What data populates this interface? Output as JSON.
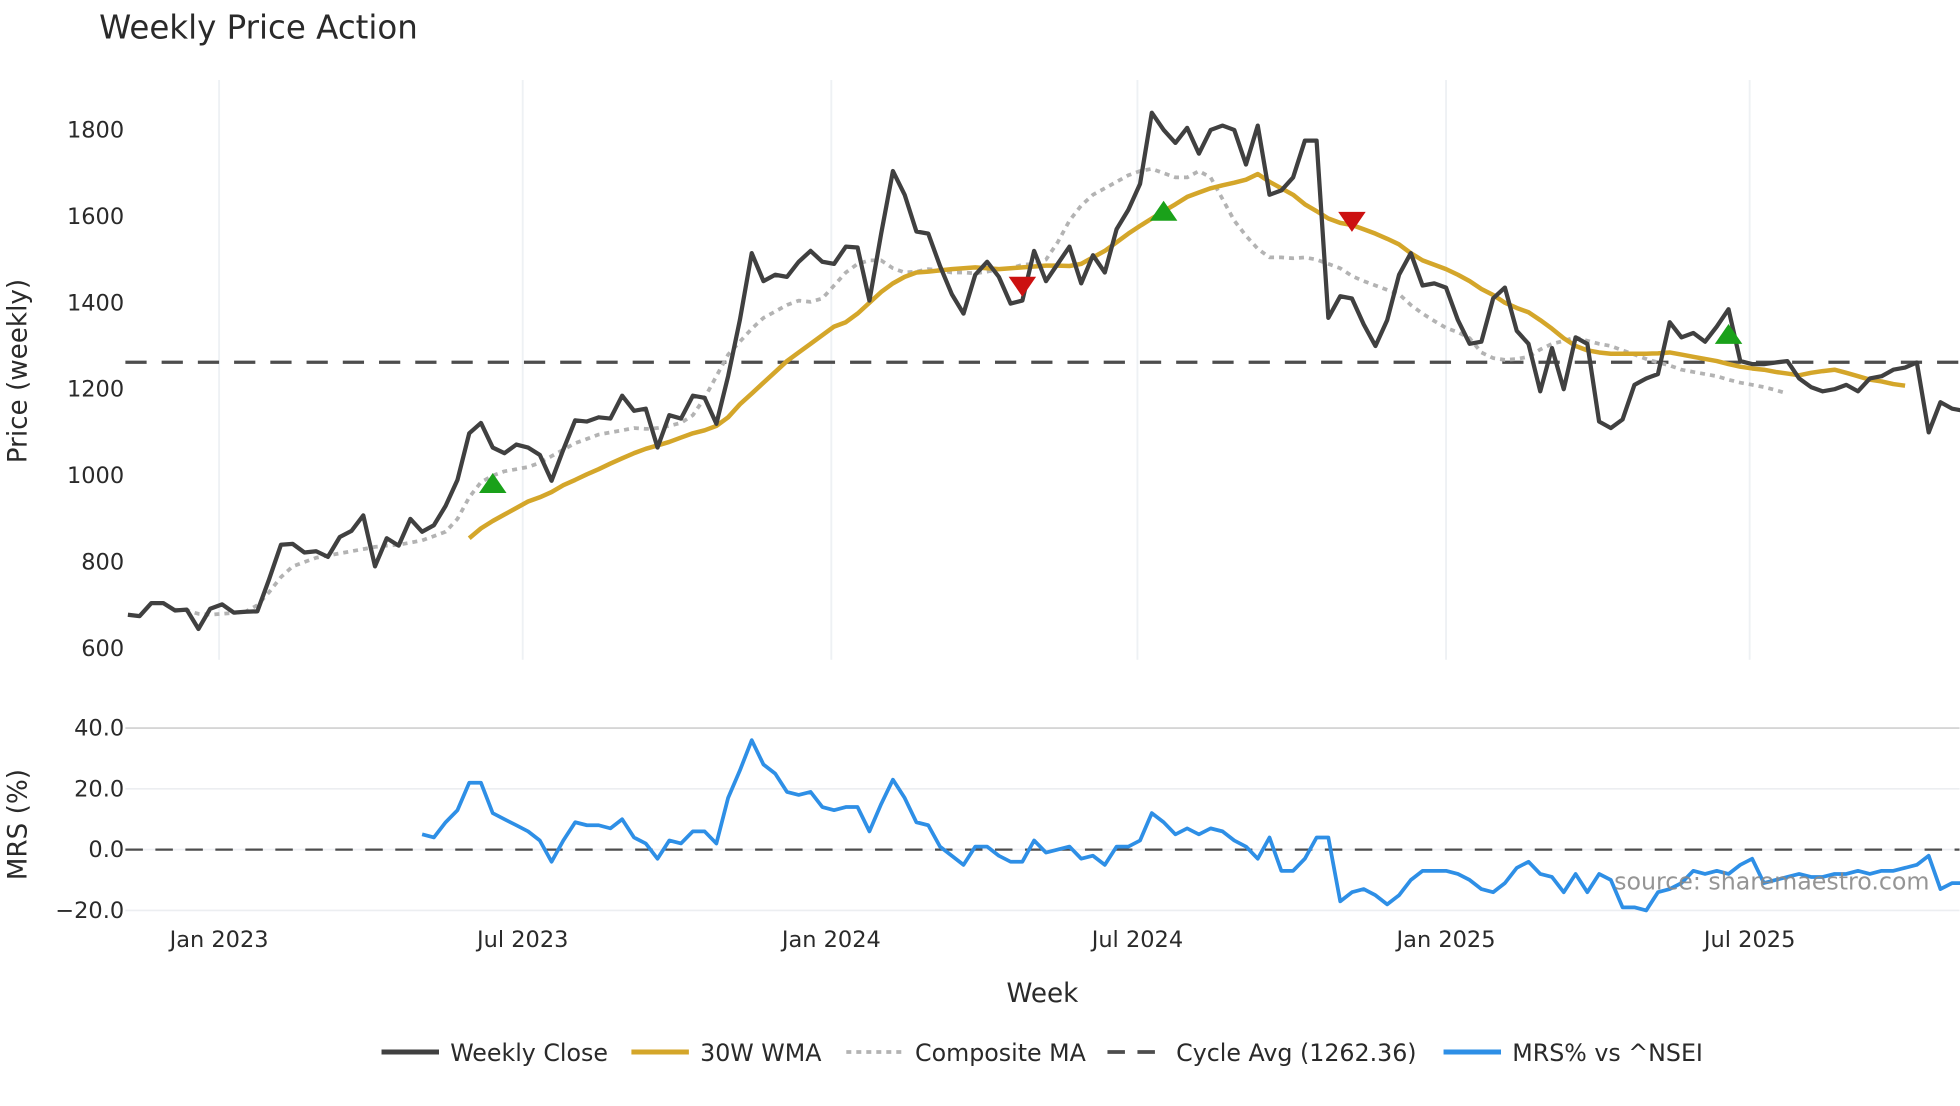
{
  "title": "Weekly Price Action",
  "watermark": "source: sharemaestro.com",
  "x_axis_title": "Week",
  "chart_data": [
    {
      "type": "line",
      "title": "Weekly Price Action",
      "xlabel": "",
      "ylabel": "Price (weekly)",
      "ylim": [
        580,
        1900
      ],
      "yticks": [
        600,
        800,
        1000,
        1200,
        1400,
        1600,
        1800
      ],
      "xticks": [
        "Jan 2023",
        "Jul 2023",
        "Jan 2024",
        "Jul 2024",
        "Jan 2025",
        "Jul 2025"
      ],
      "grid": true,
      "legend_position": "bottom",
      "x_start": "Nov 2022",
      "x_unit": "week",
      "series": [
        {
          "name": "Weekly Close",
          "color": "#404040",
          "style": "solid",
          "values": [
            678,
            675,
            705,
            705,
            688,
            690,
            645,
            692,
            702,
            683,
            685,
            686,
            760,
            840,
            842,
            822,
            825,
            812,
            858,
            872,
            908,
            790,
            855,
            838,
            900,
            870,
            885,
            930,
            990,
            1098,
            1122,
            1065,
            1052,
            1072,
            1065,
            1048,
            988,
            1060,
            1128,
            1125,
            1135,
            1132,
            1185,
            1150,
            1155,
            1065,
            1140,
            1132,
            1185,
            1180,
            1120,
            1230,
            1360,
            1515,
            1450,
            1465,
            1460,
            1495,
            1520,
            1495,
            1490,
            1530,
            1528,
            1405,
            1560,
            1705,
            1650,
            1565,
            1560,
            1485,
            1420,
            1375,
            1465,
            1495,
            1460,
            1398,
            1405,
            1520,
            1450,
            1490,
            1530,
            1445,
            1510,
            1470,
            1570,
            1615,
            1675,
            1840,
            1800,
            1770,
            1805,
            1745,
            1800,
            1810,
            1800,
            1720,
            1810,
            1650,
            1660,
            1690,
            1775,
            1775,
            1365,
            1415,
            1410,
            1350,
            1300,
            1360,
            1465,
            1515,
            1440,
            1445,
            1435,
            1360,
            1305,
            1310,
            1410,
            1435,
            1335,
            1305,
            1195,
            1295,
            1200,
            1320,
            1305,
            1125,
            1110,
            1130,
            1210,
            1225,
            1235,
            1355,
            1320,
            1330,
            1310,
            1345,
            1385,
            1265,
            1258,
            1258,
            1262,
            1265,
            1225,
            1205,
            1195,
            1200,
            1210,
            1195,
            1225,
            1230,
            1245,
            1250,
            1262,
            1100,
            1170,
            1155,
            1150,
            1180,
            1150
          ]
        },
        {
          "name": "30W WMA",
          "color": "#d4a62a",
          "style": "solid",
          "start_index": 29,
          "values": [
            855,
            878,
            895,
            910,
            925,
            940,
            950,
            962,
            978,
            990,
            1003,
            1015,
            1028,
            1040,
            1052,
            1062,
            1070,
            1078,
            1088,
            1098,
            1105,
            1115,
            1135,
            1165,
            1190,
            1215,
            1240,
            1265,
            1285,
            1305,
            1325,
            1345,
            1355,
            1375,
            1400,
            1425,
            1445,
            1460,
            1470,
            1472,
            1475,
            1478,
            1480,
            1482,
            1480,
            1478,
            1480,
            1482,
            1484,
            1486,
            1486,
            1485,
            1490,
            1505,
            1520,
            1540,
            1560,
            1578,
            1595,
            1612,
            1628,
            1645,
            1655,
            1665,
            1672,
            1678,
            1685,
            1698,
            1680,
            1665,
            1650,
            1628,
            1612,
            1595,
            1585,
            1580,
            1570,
            1560,
            1548,
            1535,
            1515,
            1498,
            1488,
            1478,
            1465,
            1450,
            1432,
            1418,
            1400,
            1388,
            1378,
            1360,
            1340,
            1318,
            1300,
            1290,
            1285,
            1282,
            1282,
            1282,
            1282,
            1283,
            1285,
            1280,
            1275,
            1270,
            1265,
            1258,
            1252,
            1248,
            1245,
            1240,
            1236,
            1232,
            1238,
            1242,
            1245,
            1238,
            1230,
            1222,
            1218,
            1212,
            1208
          ]
        },
        {
          "name": "Composite MA",
          "color": "#b3b3b3",
          "style": "dotted",
          "start_index": 4,
          "values": [
            690,
            688,
            680,
            678,
            680,
            682,
            685,
            700,
            730,
            765,
            790,
            800,
            810,
            815,
            820,
            825,
            830,
            835,
            838,
            840,
            845,
            850,
            860,
            870,
            900,
            950,
            985,
            1000,
            1010,
            1015,
            1020,
            1030,
            1045,
            1060,
            1075,
            1085,
            1095,
            1100,
            1105,
            1110,
            1108,
            1110,
            1115,
            1122,
            1140,
            1180,
            1230,
            1280,
            1310,
            1340,
            1365,
            1380,
            1395,
            1405,
            1402,
            1410,
            1440,
            1470,
            1490,
            1498,
            1498,
            1480,
            1470,
            1472,
            1478,
            1475,
            1470,
            1470,
            1468,
            1472,
            1478,
            1480,
            1488,
            1490,
            1500,
            1540,
            1590,
            1625,
            1650,
            1665,
            1680,
            1695,
            1705,
            1710,
            1700,
            1690,
            1690,
            1705,
            1690,
            1640,
            1590,
            1555,
            1525,
            1505,
            1505,
            1503,
            1505,
            1500,
            1490,
            1480,
            1462,
            1450,
            1440,
            1430,
            1420,
            1395,
            1375,
            1358,
            1342,
            1332,
            1318,
            1285,
            1272,
            1268,
            1270,
            1275,
            1292,
            1305,
            1312,
            1320,
            1312,
            1305,
            1300,
            1290,
            1280,
            1270,
            1262,
            1255,
            1245,
            1240,
            1235,
            1230,
            1222,
            1215,
            1210,
            1205,
            1198,
            1190
          ]
        },
        {
          "name": "Cycle Avg (1262.36)",
          "color": "#4d4d4d",
          "style": "dashed",
          "value": 1262.36
        }
      ],
      "markers": [
        {
          "type": "buy",
          "shape": "triangle-up",
          "color": "#1aa11a",
          "index": 31,
          "price": 980
        },
        {
          "type": "sell",
          "shape": "triangle-down",
          "color": "#cc1111",
          "index": 76,
          "price": 1440
        },
        {
          "type": "buy",
          "shape": "triangle-up",
          "color": "#1aa11a",
          "index": 88,
          "price": 1610
        },
        {
          "type": "sell",
          "shape": "triangle-down",
          "color": "#cc1111",
          "index": 104,
          "price": 1590
        },
        {
          "type": "buy",
          "shape": "triangle-up",
          "color": "#1aa11a",
          "index": 136,
          "price": 1325
        }
      ]
    },
    {
      "type": "line",
      "title": "",
      "xlabel": "Week",
      "ylabel": "MRS (%)",
      "ylim": [
        -22,
        42
      ],
      "yticks": [
        -20.0,
        0.0,
        20.0,
        40.0
      ],
      "ytick_labels": [
        "−20.0",
        "0.0",
        "20.0",
        "40.0"
      ],
      "grid": true,
      "zero_line": "dashed",
      "series": [
        {
          "name": "MRS% vs ^NSEI",
          "color": "#2e8fe6",
          "style": "solid",
          "start_index": 25,
          "values": [
            5,
            4,
            9,
            13,
            22,
            22,
            12,
            10,
            8,
            6,
            3,
            -4,
            3,
            9,
            8,
            8,
            7,
            10,
            4,
            2,
            -3,
            3,
            2,
            6,
            6,
            2,
            17,
            26,
            36,
            28,
            25,
            19,
            18,
            19,
            14,
            13,
            14,
            14,
            6,
            15,
            23,
            17,
            9,
            8,
            1,
            -2,
            -5,
            1,
            1,
            -2,
            -4,
            -4,
            3,
            -1,
            0,
            1,
            -3,
            -2,
            -5,
            1,
            1,
            3,
            12,
            9,
            5,
            7,
            5,
            7,
            6,
            3,
            1,
            -3,
            4,
            -7,
            -7,
            -3,
            4,
            4,
            -17,
            -14,
            -13,
            -15,
            -18,
            -15,
            -10,
            -7,
            -7,
            -7,
            -8,
            -10,
            -13,
            -14,
            -11,
            -6,
            -4,
            -8,
            -9,
            -14,
            -8,
            -14,
            -8,
            -10,
            -19,
            -19,
            -20,
            -14,
            -13,
            -11,
            -7,
            -8,
            -7,
            -8,
            -5,
            -3,
            -11,
            -10,
            -9,
            -8,
            -9,
            -9,
            -8,
            -8,
            -7,
            -8,
            -7,
            -7,
            -6,
            -5,
            -2,
            -13,
            -11,
            -11,
            -12,
            -10,
            -11
          ]
        }
      ]
    }
  ],
  "legend": [
    {
      "label": "Weekly Close",
      "color": "#404040",
      "style": "solid"
    },
    {
      "label": "30W WMA",
      "color": "#d4a62a",
      "style": "solid"
    },
    {
      "label": "Composite MA",
      "color": "#b3b3b3",
      "style": "dotted"
    },
    {
      "label": "Cycle Avg (1262.36)",
      "color": "#4d4d4d",
      "style": "dashed"
    },
    {
      "label": "MRS% vs ^NSEI",
      "color": "#2e8fe6",
      "style": "solid"
    }
  ]
}
